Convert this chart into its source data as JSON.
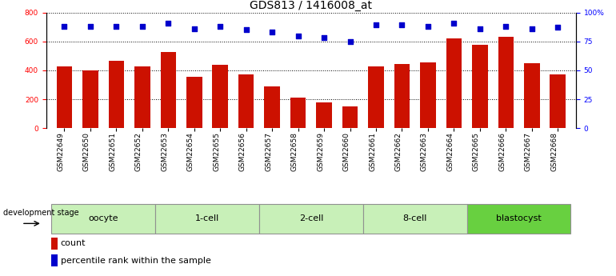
{
  "title": "GDS813 / 1416008_at",
  "samples": [
    "GSM22649",
    "GSM22650",
    "GSM22651",
    "GSM22652",
    "GSM22653",
    "GSM22654",
    "GSM22655",
    "GSM22656",
    "GSM22657",
    "GSM22658",
    "GSM22659",
    "GSM22660",
    "GSM22661",
    "GSM22662",
    "GSM22663",
    "GSM22664",
    "GSM22665",
    "GSM22666",
    "GSM22667",
    "GSM22668"
  ],
  "counts": [
    430,
    400,
    465,
    430,
    525,
    355,
    440,
    370,
    290,
    210,
    180,
    150,
    430,
    445,
    455,
    620,
    575,
    630,
    450,
    375
  ],
  "percentiles": [
    88,
    88,
    88,
    88,
    91,
    86,
    88,
    85,
    83,
    80,
    78,
    75,
    89,
    89,
    88,
    91,
    86,
    88,
    86,
    87
  ],
  "bar_color": "#cc1100",
  "dot_color": "#0000cc",
  "ylim_left": [
    0,
    800
  ],
  "ylim_right": [
    0,
    100
  ],
  "yticks_left": [
    0,
    200,
    400,
    600,
    800
  ],
  "yticks_right": [
    0,
    25,
    50,
    75,
    100
  ],
  "groups": [
    {
      "label": "oocyte",
      "start": 0,
      "end": 3,
      "color": "#c8f0b8"
    },
    {
      "label": "1-cell",
      "start": 4,
      "end": 7,
      "color": "#c8f0b8"
    },
    {
      "label": "2-cell",
      "start": 8,
      "end": 11,
      "color": "#c8f0b8"
    },
    {
      "label": "8-cell",
      "start": 12,
      "end": 15,
      "color": "#c8f0b8"
    },
    {
      "label": "blastocyst",
      "start": 16,
      "end": 19,
      "color": "#68d040"
    }
  ],
  "group_bg_color": "#d8d8d8",
  "dev_stage_label": "development stage",
  "legend_count_label": "count",
  "legend_percentile_label": "percentile rank within the sample",
  "title_fontsize": 10,
  "tick_fontsize": 6.5,
  "group_fontsize": 8,
  "legend_fontsize": 8
}
